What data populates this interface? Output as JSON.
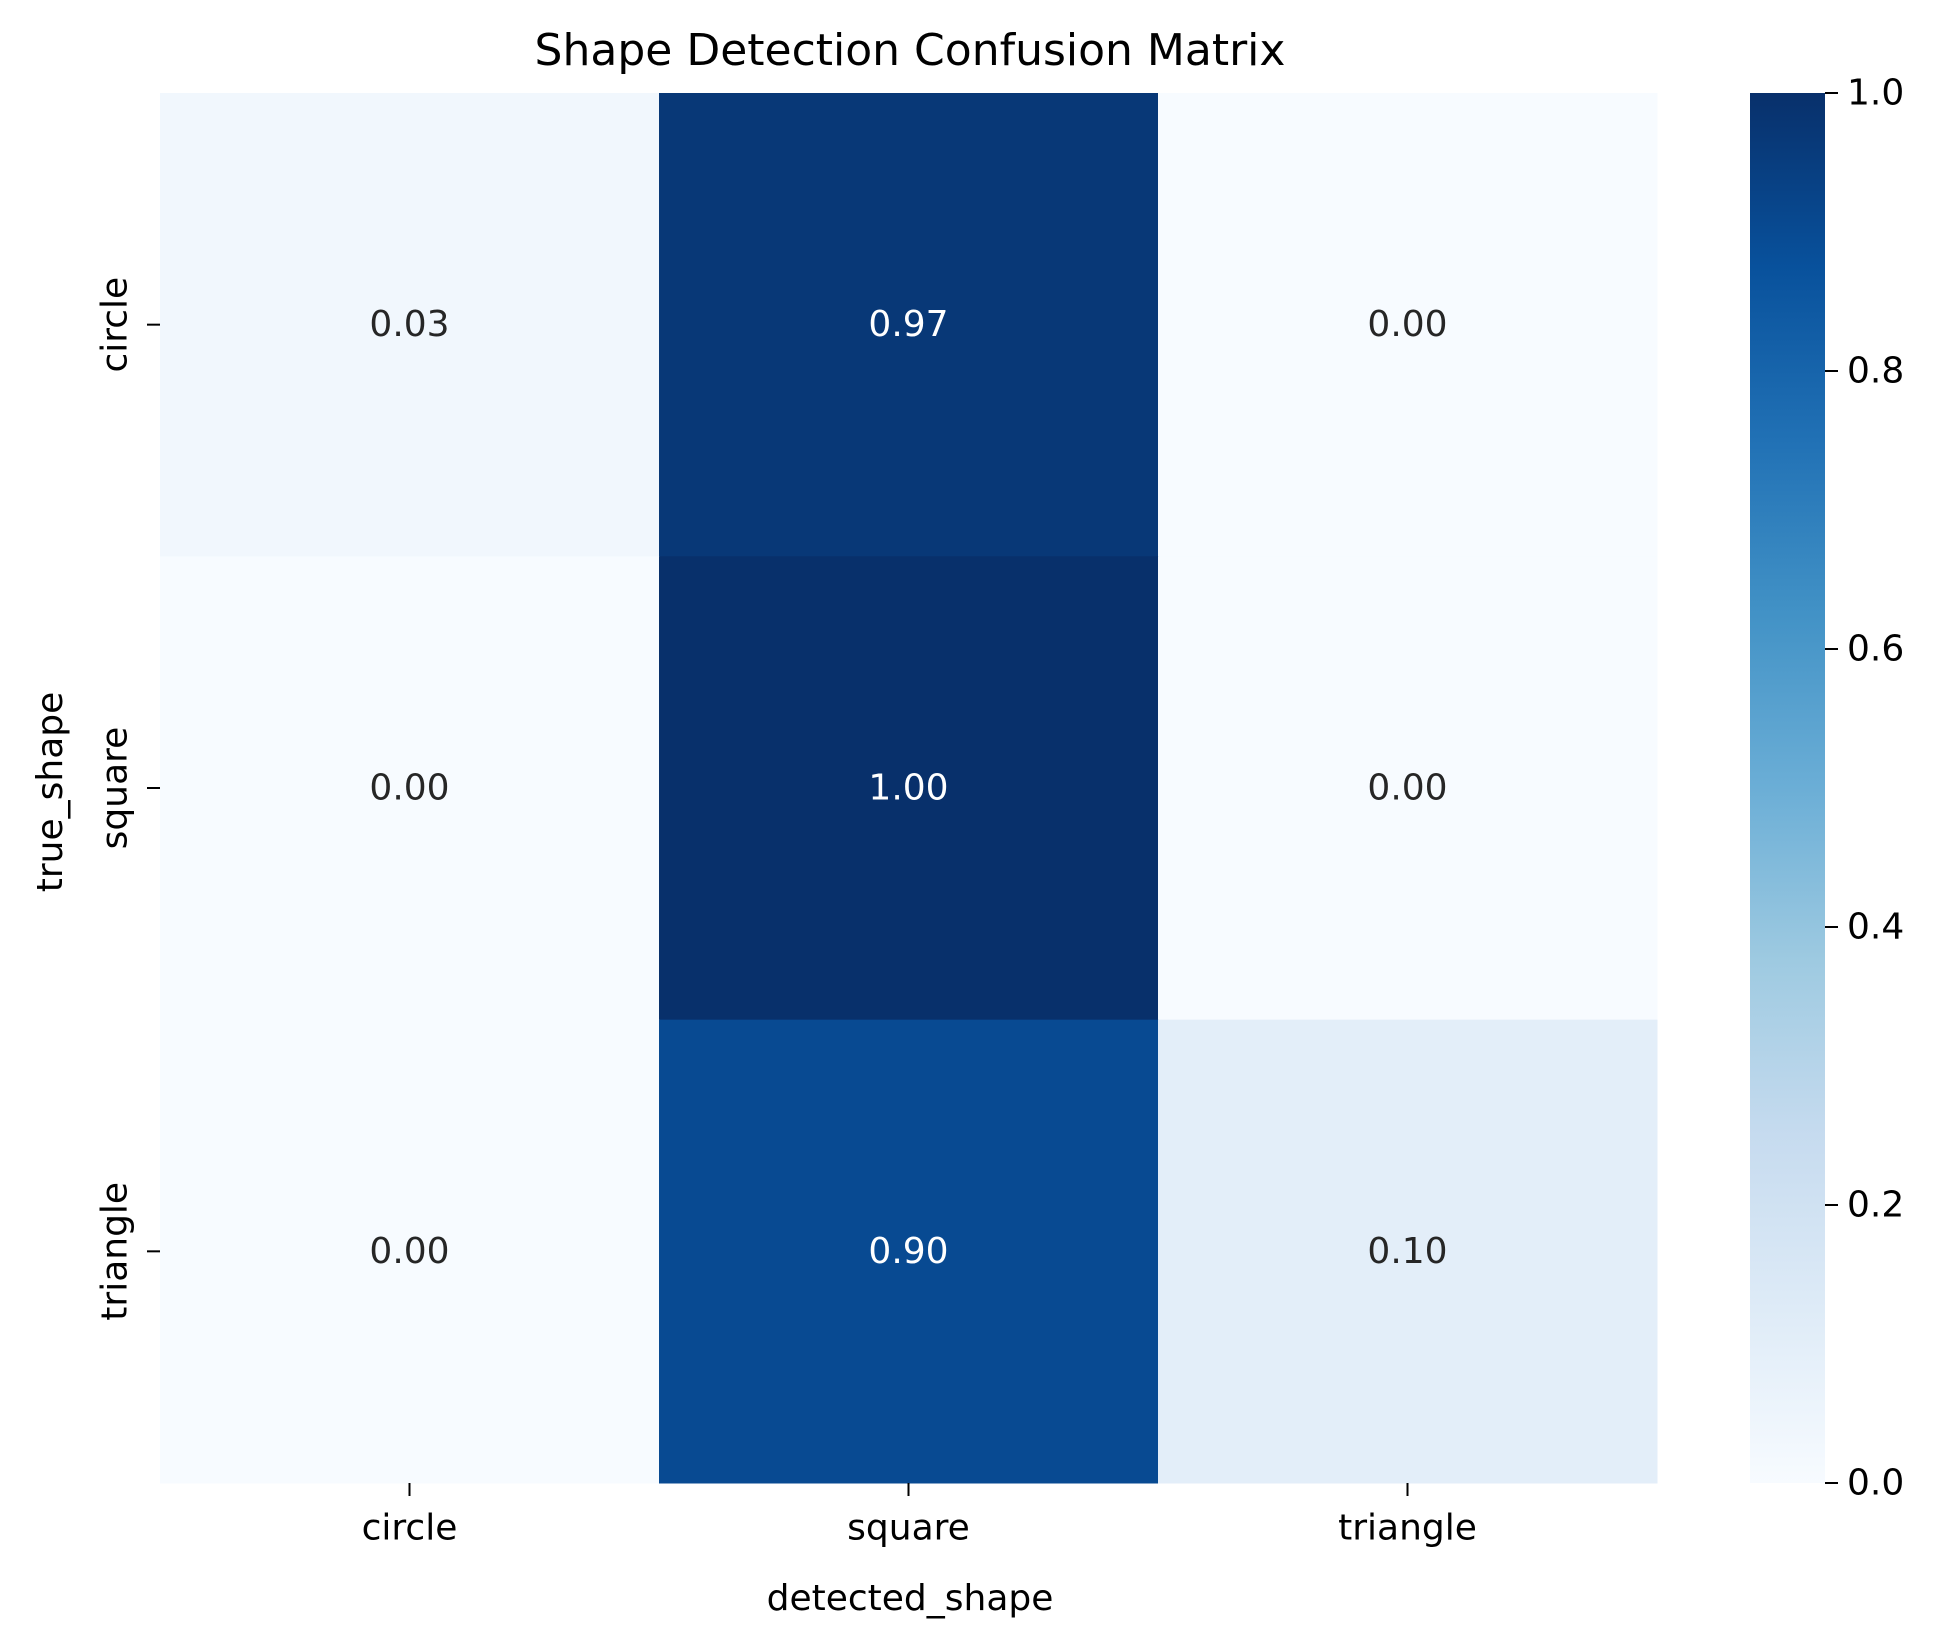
{
  "chart_data": {
    "type": "heatmap",
    "title": "Shape Detection Confusion Matrix",
    "xlabel": "detected_shape",
    "ylabel": "true_shape",
    "x_categories": [
      "circle",
      "square",
      "triangle"
    ],
    "y_categories": [
      "circle",
      "square",
      "triangle"
    ],
    "values": [
      [
        0.03,
        0.97,
        0.0
      ],
      [
        0.0,
        1.0,
        0.0
      ],
      [
        0.0,
        0.9,
        0.1
      ]
    ],
    "value_labels": [
      [
        "0.03",
        "0.97",
        "0.00"
      ],
      [
        "0.00",
        "1.00",
        "0.00"
      ],
      [
        "0.00",
        "0.90",
        "0.10"
      ]
    ],
    "colormap": "Blues",
    "color_range": [
      0,
      1
    ],
    "colorbar": {
      "ticks": [
        0.0,
        0.2,
        0.4,
        0.6,
        0.8,
        1.0
      ],
      "tick_labels": [
        "0.0",
        "0.2",
        "0.4",
        "0.6",
        "0.8",
        "1.0"
      ]
    }
  }
}
